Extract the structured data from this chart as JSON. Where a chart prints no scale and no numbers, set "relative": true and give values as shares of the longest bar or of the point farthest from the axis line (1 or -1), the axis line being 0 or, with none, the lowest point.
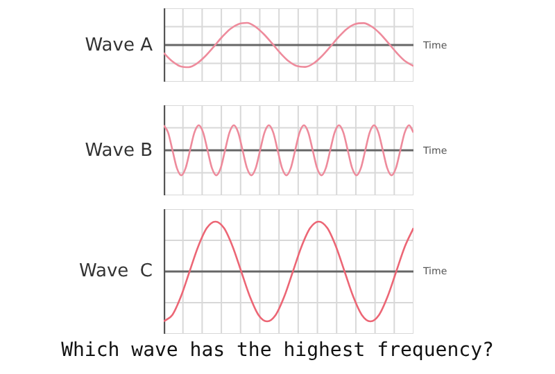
{
  "chart_data": [
    {
      "type": "line",
      "title": "Wave A",
      "xlabel": "Time",
      "relative": true,
      "grid": true,
      "marker": "none",
      "tick_labels": false,
      "categories": [
        null,
        null,
        null,
        null,
        null,
        null,
        null,
        null,
        null,
        null,
        null,
        null,
        null,
        null,
        null,
        null,
        null,
        null,
        null,
        null,
        null,
        null,
        null,
        null,
        null,
        null,
        null,
        null,
        null,
        null,
        null
      ],
      "series": [
        {
          "color": "#ee8b9c",
          "values": [
            -0.36,
            -0.73,
            -0.96,
            -1,
            -0.83,
            -0.5,
            -0.08,
            0.36,
            0.73,
            0.95,
            1,
            0.83,
            0.5,
            0.08,
            -0.36,
            -0.73,
            -0.95,
            -0.99,
            -0.83,
            -0.5,
            -0.08,
            0.36,
            0.73,
            0.95,
            0.99,
            0.83,
            0.51,
            0.08,
            -0.36,
            -0.73,
            -0.95
          ]
        }
      ]
    },
    {
      "type": "line",
      "title": "Wave B",
      "xlabel": "Time",
      "relative": true,
      "grid": true,
      "marker": "none",
      "tick_labels": false,
      "categories": [
        null,
        null,
        null,
        null,
        null,
        null,
        null,
        null,
        null,
        null,
        null,
        null,
        null,
        null,
        null,
        null,
        null,
        null,
        null,
        null,
        null,
        null,
        null,
        null,
        null,
        null,
        null,
        null,
        null,
        null,
        null,
        null,
        null,
        null,
        null,
        null,
        null,
        null,
        null,
        null,
        null,
        null,
        null,
        null,
        null,
        null,
        null,
        null,
        null,
        null,
        null,
        null,
        null,
        null,
        null,
        null,
        null,
        null
      ],
      "series": [
        {
          "color": "#ee8b9c",
          "values": [
            1,
            0.71,
            0,
            -0.71,
            -1,
            -0.71,
            0,
            0.71,
            1,
            0.71,
            0,
            -0.71,
            -1,
            -0.71,
            0,
            0.71,
            1,
            0.71,
            0,
            -0.71,
            -1,
            -0.71,
            0,
            0.71,
            1,
            0.71,
            0,
            -0.71,
            -1,
            -0.71,
            0,
            0.71,
            1,
            0.71,
            0,
            -0.71,
            -1,
            -0.71,
            0,
            0.71,
            1,
            0.71,
            0,
            -0.71,
            -1,
            -0.71,
            0,
            0.71,
            1,
            0.71,
            0,
            -0.71,
            -1,
            -0.71,
            0,
            0.71,
            1,
            0.71
          ]
        }
      ]
    },
    {
      "type": "line",
      "title": "Wave  C",
      "xlabel": "Time",
      "relative": true,
      "grid": true,
      "marker": "none",
      "tick_labels": false,
      "annotations": [
        "Which wave has the highest frequency?"
      ],
      "categories": [
        null,
        null,
        null,
        null,
        null,
        null,
        null,
        null,
        null,
        null,
        null,
        null,
        null,
        null,
        null,
        null,
        null,
        null,
        null,
        null,
        null,
        null,
        null,
        null,
        null,
        null,
        null,
        null,
        null,
        null
      ],
      "series": [
        {
          "color": "#ec6675",
          "values": [
            -1,
            -0.87,
            -0.5,
            0,
            0.5,
            0.87,
            1,
            0.87,
            0.5,
            0,
            -0.5,
            -0.87,
            -1,
            -0.87,
            -0.5,
            0,
            0.5,
            0.87,
            1,
            0.87,
            0.5,
            0,
            -0.5,
            -0.87,
            -1,
            -0.87,
            -0.5,
            0,
            0.5,
            0.87
          ]
        }
      ]
    }
  ]
}
